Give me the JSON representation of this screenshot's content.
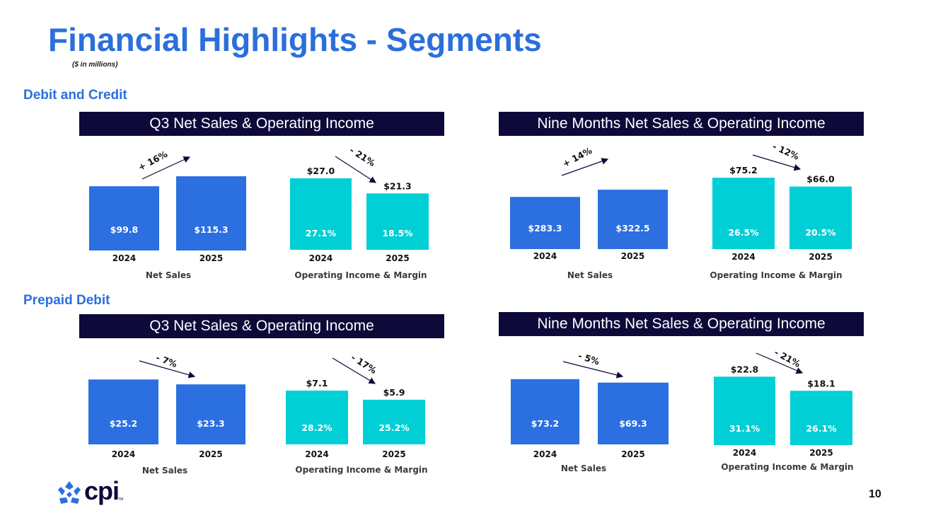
{
  "title": "Financial Highlights - Segments",
  "units_note": "($ in millions)",
  "sections": [
    {
      "label": "Debit and Credit"
    },
    {
      "label": "Prepaid Debit"
    }
  ],
  "headers": {
    "q3": "Q3 Net Sales & Operating Income",
    "nine_months": "Nine Months Net Sales & Operating Income"
  },
  "colors": {
    "net_sales_bar": "#2b6fe0",
    "op_income_bar": "#00cfd6",
    "header_bg": "#0d0a3a",
    "title": "#2b6fdb",
    "arrow": "#0d0a3a"
  },
  "page_number": "10",
  "logo": {
    "text": "cpi",
    "tm": "TM"
  },
  "chart_data": [
    {
      "type": "bar",
      "section": "Debit and Credit",
      "period": "Q3",
      "title": "Net Sales",
      "categories": [
        "2024",
        "2025"
      ],
      "values": [
        99.8,
        115.3
      ],
      "value_labels": [
        "$99.8",
        "$115.3"
      ],
      "change": "+ 16%",
      "bar_color": "#2b6fe0"
    },
    {
      "type": "bar",
      "section": "Debit and Credit",
      "period": "Q3",
      "title": "Operating Income & Margin",
      "categories": [
        "2024",
        "2025"
      ],
      "values": [
        27.0,
        21.3
      ],
      "value_labels": [
        "$27.0",
        "$21.3"
      ],
      "margins": [
        "27.1%",
        "18.5%"
      ],
      "change": "- 21%",
      "bar_color": "#00cfd6"
    },
    {
      "type": "bar",
      "section": "Debit and Credit",
      "period": "Nine Months",
      "title": "Net Sales",
      "categories": [
        "2024",
        "2025"
      ],
      "values": [
        283.3,
        322.5
      ],
      "value_labels": [
        "$283.3",
        "$322.5"
      ],
      "change": "+ 14%",
      "bar_color": "#2b6fe0"
    },
    {
      "type": "bar",
      "section": "Debit and Credit",
      "period": "Nine Months",
      "title": "Operating Income & Margin",
      "categories": [
        "2024",
        "2025"
      ],
      "values": [
        75.2,
        66.0
      ],
      "value_labels": [
        "$75.2",
        "$66.0"
      ],
      "margins": [
        "26.5%",
        "20.5%"
      ],
      "change": "- 12%",
      "bar_color": "#00cfd6"
    },
    {
      "type": "bar",
      "section": "Prepaid Debit",
      "period": "Q3",
      "title": "Net Sales",
      "categories": [
        "2024",
        "2025"
      ],
      "values": [
        25.2,
        23.3
      ],
      "value_labels": [
        "$25.2",
        "$23.3"
      ],
      "change": "- 7%",
      "bar_color": "#2b6fe0"
    },
    {
      "type": "bar",
      "section": "Prepaid Debit",
      "period": "Q3",
      "title": "Operating Income & Margin",
      "categories": [
        "2024",
        "2025"
      ],
      "values": [
        7.1,
        5.9
      ],
      "value_labels": [
        "$7.1",
        "$5.9"
      ],
      "margins": [
        "28.2%",
        "25.2%"
      ],
      "change": "- 17%",
      "bar_color": "#00cfd6"
    },
    {
      "type": "bar",
      "section": "Prepaid Debit",
      "period": "Nine Months",
      "title": "Net Sales",
      "categories": [
        "2024",
        "2025"
      ],
      "values": [
        73.2,
        69.3
      ],
      "value_labels": [
        "$73.2",
        "$69.3"
      ],
      "change": "- 5%",
      "bar_color": "#2b6fe0"
    },
    {
      "type": "bar",
      "section": "Prepaid Debit",
      "period": "Nine Months",
      "title": "Operating Income & Margin",
      "categories": [
        "2024",
        "2025"
      ],
      "values": [
        22.8,
        18.1
      ],
      "value_labels": [
        "$22.8",
        "$18.1"
      ],
      "margins": [
        "31.1%",
        "26.1%"
      ],
      "change": "- 21%",
      "bar_color": "#00cfd6"
    }
  ]
}
